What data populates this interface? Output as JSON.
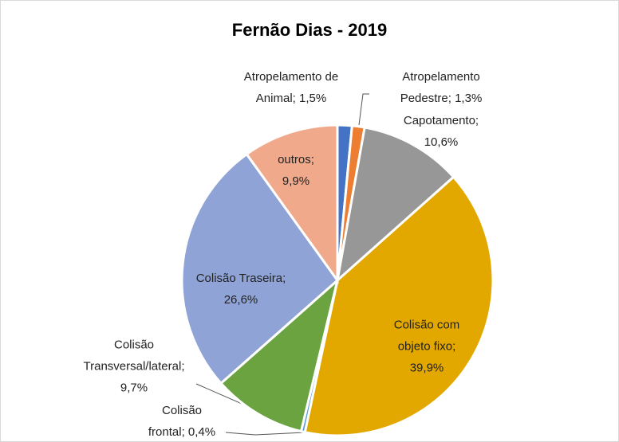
{
  "chart_data": {
    "type": "pie",
    "title": "Fernão Dias - 2019",
    "categories": [
      "Atropelamento de Animal;",
      "Atropelamento Pedestre;",
      "Capotamento;",
      "Colisão com objeto fixo;",
      "Colisão frontal;",
      "Colisão Transversal/lateral;",
      "Colisão Traseira;",
      "outros;"
    ],
    "values": [
      1.5,
      1.3,
      10.6,
      39.9,
      0.4,
      9.7,
      26.6,
      9.9
    ],
    "value_labels": [
      "1,5%",
      "1,3%",
      "10,6%",
      "39,9%",
      "0,4%",
      "9,7%",
      "26,6%",
      "9,9%"
    ],
    "colors": [
      "#4472c4",
      "#ed7d31",
      "#979797",
      "#e3a800",
      "#5b9bd5",
      "#6aa340",
      "#8fa3d6",
      "#f0aa8b"
    ]
  }
}
